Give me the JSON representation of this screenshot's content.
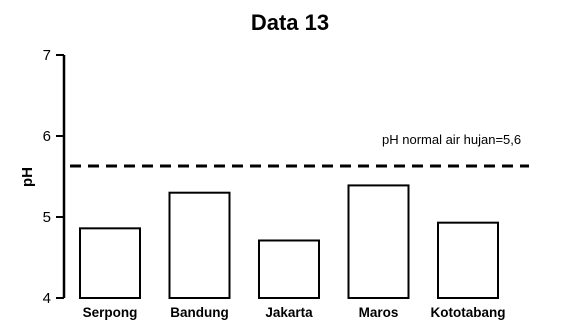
{
  "chart_data": {
    "type": "bar",
    "title": "Data 13",
    "xlabel": "",
    "ylabel": "pH",
    "ylim": [
      4,
      7
    ],
    "yticks": [
      4,
      5,
      6,
      7
    ],
    "categories": [
      "Serpong",
      "Bandung",
      "Jakarta",
      "Maros",
      "Kototabang"
    ],
    "values": [
      4.86,
      5.3,
      4.71,
      5.39,
      4.93
    ],
    "grid": false,
    "bar_fill": "#ffffff",
    "bar_stroke": "#000000",
    "reference_line": {
      "value": 5.63,
      "style": "dashed",
      "label": "pH normal air hujan=5,6"
    }
  }
}
